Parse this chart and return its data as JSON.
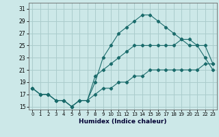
{
  "xlabel": "Humidex (Indice chaleur)",
  "bg_color": "#cce8e8",
  "grid_color": "#aacccc",
  "line_color": "#1a6b6b",
  "xlim": [
    -0.5,
    23.5
  ],
  "ylim": [
    14.5,
    32.0
  ],
  "xticks": [
    0,
    1,
    2,
    3,
    4,
    5,
    6,
    7,
    8,
    9,
    10,
    11,
    12,
    13,
    14,
    15,
    16,
    17,
    18,
    19,
    20,
    21,
    22,
    23
  ],
  "yticks": [
    15,
    17,
    19,
    21,
    23,
    25,
    27,
    29,
    31
  ],
  "line1_x": [
    0,
    1,
    2,
    3,
    4,
    5,
    6,
    7,
    8,
    9,
    10,
    11,
    12,
    13,
    14,
    15,
    16,
    17,
    18,
    19,
    20,
    21,
    22,
    23
  ],
  "line1_y": [
    18,
    17,
    17,
    16,
    16,
    15,
    16,
    16,
    19,
    23,
    25,
    27,
    28,
    29,
    30,
    30,
    29,
    28,
    27,
    26,
    25,
    25,
    23,
    21
  ],
  "line2_x": [
    0,
    1,
    2,
    3,
    4,
    5,
    6,
    7,
    8,
    9,
    10,
    11,
    12,
    13,
    14,
    15,
    16,
    17,
    18,
    19,
    20,
    21,
    22,
    23
  ],
  "line2_y": [
    18,
    17,
    17,
    16,
    16,
    15,
    16,
    16,
    20,
    21,
    22,
    23,
    24,
    25,
    25,
    25,
    25,
    25,
    25,
    26,
    26,
    25,
    25,
    22
  ],
  "line3_x": [
    0,
    1,
    2,
    3,
    4,
    5,
    6,
    7,
    8,
    9,
    10,
    11,
    12,
    13,
    14,
    15,
    16,
    17,
    18,
    19,
    20,
    21,
    22,
    23
  ],
  "line3_y": [
    18,
    17,
    17,
    16,
    16,
    15,
    16,
    16,
    17,
    18,
    18,
    19,
    19,
    20,
    20,
    21,
    21,
    21,
    21,
    21,
    21,
    21,
    22,
    22
  ]
}
